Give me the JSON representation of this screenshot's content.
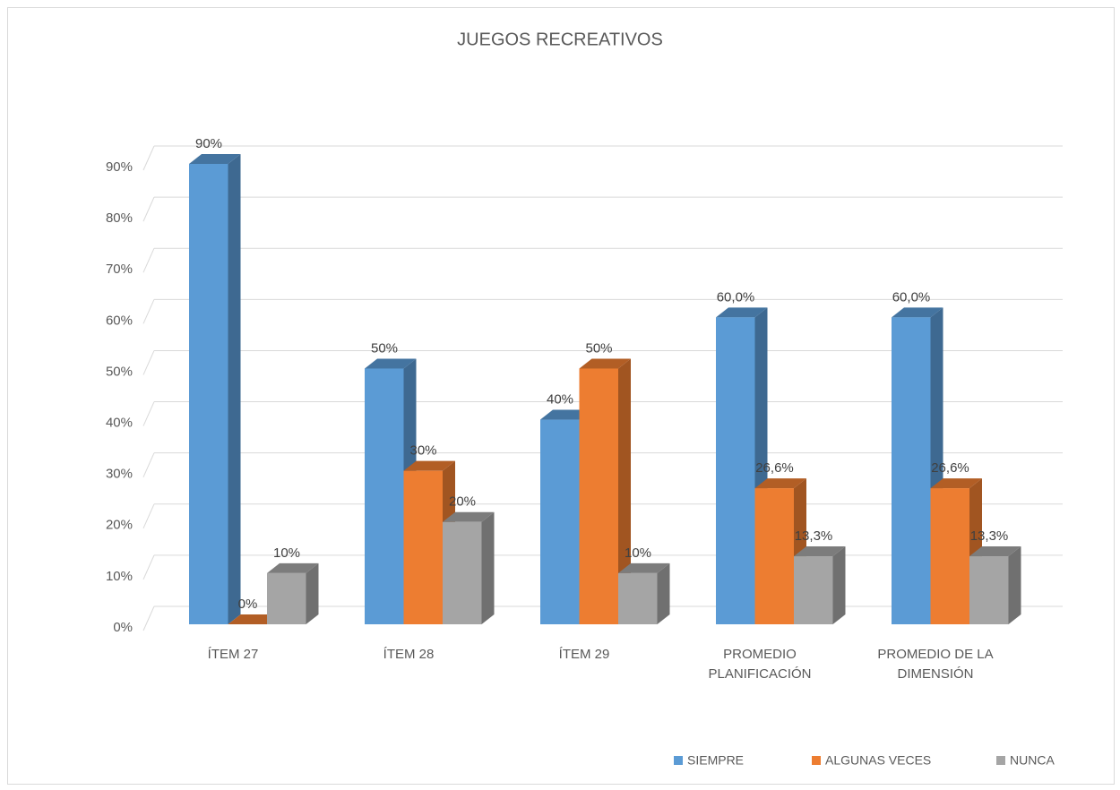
{
  "chart_data": {
    "type": "bar3d",
    "title": "JUEGOS RECREATIVOS",
    "categories": [
      "ÍTEM 27",
      "ÍTEM 28",
      "ÍTEM 29",
      "PROMEDIO PLANIFICACIÓN",
      "PROMEDIO DE LA DIMENSIÓN"
    ],
    "series": [
      {
        "name": "SIEMPRE",
        "color": "#5b9bd5",
        "values": [
          90,
          50,
          40,
          60,
          60
        ],
        "value_labels": [
          "90%",
          "50%",
          "40%",
          "60,0%",
          "60,0%"
        ]
      },
      {
        "name": "ALGUNAS VECES",
        "color": "#ed7d31",
        "values": [
          0,
          30,
          50,
          26.6,
          26.6
        ],
        "value_labels": [
          "0%",
          "30%",
          "50%",
          "26,6%",
          "26,6%"
        ]
      },
      {
        "name": "NUNCA",
        "color": "#a5a5a5",
        "values": [
          10,
          20,
          10,
          13.3,
          13.3
        ],
        "value_labels": [
          "10%",
          "20%",
          "10%",
          "13,3%",
          "13,3%"
        ]
      }
    ],
    "ylim": [
      0,
      90
    ],
    "yticks": [
      {
        "value": 0,
        "label": "0%"
      },
      {
        "value": 10,
        "label": "10%"
      },
      {
        "value": 20,
        "label": "20%"
      },
      {
        "value": 30,
        "label": "30%"
      },
      {
        "value": 40,
        "label": "40%"
      },
      {
        "value": 50,
        "label": "50%"
      },
      {
        "value": 60,
        "label": "60%"
      },
      {
        "value": 70,
        "label": "70%"
      },
      {
        "value": 80,
        "label": "80%"
      },
      {
        "value": 90,
        "label": "90%"
      }
    ],
    "grid": true,
    "legend": "bottom"
  }
}
